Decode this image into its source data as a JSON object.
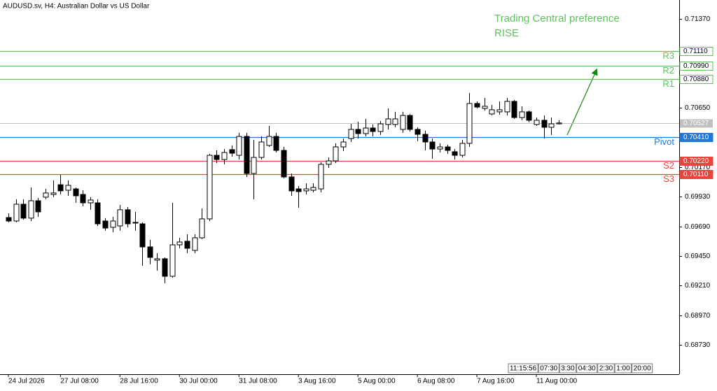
{
  "chart_data": {
    "type": "candlestick",
    "title": "AUDUSD.sv, H4:  Australian Dollar vs US Dollar",
    "annotation": [
      "Trading Central preference",
      "RISE"
    ],
    "categories": [
      "24 Jul 2026",
      null,
      null,
      null,
      null,
      null,
      null,
      "27 Jul 08:00",
      null,
      null,
      null,
      null,
      null,
      null,
      null,
      "28 Jul 16:00",
      null,
      null,
      null,
      null,
      null,
      null,
      null,
      "30 Jul 00:00",
      null,
      null,
      null,
      null,
      null,
      null,
      null,
      "31 Jul 08:00",
      null,
      null,
      null,
      null,
      null,
      null,
      null,
      "3 Aug 16:00",
      null,
      null,
      null,
      null,
      null,
      null,
      null,
      "5 Aug 00:00",
      null,
      null,
      null,
      null,
      null,
      null,
      null,
      "6 Aug 08:00",
      null,
      null,
      null,
      null,
      null,
      null,
      null,
      "7 Aug 16:00",
      null,
      null,
      null,
      null,
      null,
      null,
      null,
      "11 Aug 00:00",
      null,
      null,
      null
    ],
    "open": [
      0.69761,
      0.69733,
      0.69869,
      0.69756,
      0.69897,
      0.69926,
      0.69948,
      0.70027,
      0.69982,
      0.69993,
      0.69948,
      0.6988,
      0.6988,
      0.69733,
      0.69682,
      0.69693,
      0.69824,
      0.69722,
      0.6971,
      0.69523,
      0.69416,
      0.69427,
      0.69285,
      0.6954,
      0.69569,
      0.69495,
      0.69597,
      0.6975,
      0.70265,
      0.70231,
      0.70311,
      0.70265,
      0.70418,
      0.70118,
      0.70248,
      0.70345,
      0.70418,
      0.70305,
      0.7009,
      0.69993,
      0.69977,
      0.69982,
      0.69993,
      0.70192,
      0.7022,
      0.70333,
      0.70401,
      0.70475,
      0.70441,
      0.70486,
      0.70458,
      0.70515,
      0.70515,
      0.70475,
      0.70588,
      0.70475,
      0.70435,
      0.70373,
      0.70316,
      0.70333,
      0.70294,
      0.70265,
      0.70362,
      0.70685,
      0.70645,
      0.706,
      0.70617,
      0.70617,
      0.70702,
      0.70571,
      0.70617,
      0.70515,
      0.70549,
      0.70492,
      0.7052
    ],
    "high": [
      0.69795,
      0.69909,
      0.69909,
      0.70005,
      0.6992,
      0.69993,
      0.70061,
      0.70107,
      0.70061,
      0.70005,
      0.69982,
      0.69926,
      0.69909,
      0.69756,
      0.69767,
      0.69863,
      0.69846,
      0.69807,
      0.69722,
      0.6958,
      0.69472,
      0.69438,
      0.6988,
      0.69597,
      0.69625,
      0.69625,
      0.69835,
      0.70277,
      0.70305,
      0.70316,
      0.70345,
      0.70447,
      0.70447,
      0.7039,
      0.70418,
      0.70503,
      0.70447,
      0.70333,
      0.70118,
      0.70016,
      0.70039,
      0.70039,
      0.70209,
      0.70248,
      0.70362,
      0.70401,
      0.7052,
      0.70537,
      0.7056,
      0.70515,
      0.70543,
      0.70645,
      0.70617,
      0.70617,
      0.706,
      0.70492,
      0.70464,
      0.70401,
      0.70362,
      0.7035,
      0.70316,
      0.7039,
      0.7077,
      0.70702,
      0.7073,
      0.70673,
      0.70702,
      0.7073,
      0.70713,
      0.70662,
      0.70628,
      0.70571,
      0.70588,
      0.70571,
      0.70549
    ],
    "low": [
      0.69722,
      0.69722,
      0.69744,
      0.69733,
      0.69767,
      0.69909,
      0.69926,
      0.69948,
      0.69937,
      0.6988,
      0.69852,
      0.69824,
      0.69693,
      0.69654,
      0.69642,
      0.69654,
      0.69682,
      0.69654,
      0.6937,
      0.69382,
      0.69331,
      0.69229,
      0.69274,
      0.69512,
      0.69472,
      0.69472,
      0.69586,
      0.69733,
      0.70203,
      0.70192,
      0.70254,
      0.70231,
      0.7009,
      0.69909,
      0.70231,
      0.70333,
      0.70288,
      0.70078,
      0.69937,
      0.69841,
      0.69948,
      0.69965,
      0.69965,
      0.70163,
      0.70203,
      0.70299,
      0.70373,
      0.70401,
      0.70418,
      0.70418,
      0.7043,
      0.70475,
      0.70492,
      0.70447,
      0.70458,
      0.70379,
      0.70305,
      0.70237,
      0.70288,
      0.70277,
      0.70231,
      0.70248,
      0.70333,
      0.70645,
      0.70628,
      0.70588,
      0.70594,
      0.70588,
      0.7056,
      0.70549,
      0.70532,
      0.70503,
      0.70401,
      0.7043,
      0.70515
    ],
    "close": [
      0.69733,
      0.69869,
      0.69756,
      0.69897,
      0.69807,
      0.6996,
      0.6996,
      0.69977,
      0.70022,
      0.69937,
      0.6988,
      0.69903,
      0.6971,
      0.69676,
      0.69733,
      0.69824,
      0.6971,
      0.69716,
      0.69523,
      0.69438,
      0.69427,
      0.69285,
      0.6954,
      0.69563,
      0.69512,
      0.69597,
      0.6975,
      0.70265,
      0.70231,
      0.70288,
      0.70282,
      0.70418,
      0.70118,
      0.70248,
      0.70373,
      0.70418,
      0.70305,
      0.7009,
      0.69977,
      0.69971,
      0.69993,
      0.70005,
      0.70192,
      0.7022,
      0.70333,
      0.70373,
      0.70475,
      0.70441,
      0.70486,
      0.70458,
      0.7052,
      0.7056,
      0.7056,
      0.70588,
      0.70475,
      0.70435,
      0.70373,
      0.70316,
      0.70333,
      0.70305,
      0.70265,
      0.70362,
      0.70685,
      0.70656,
      0.70662,
      0.70634,
      0.70634,
      0.70702,
      0.70571,
      0.70617,
      0.70549,
      0.70549,
      0.70492,
      0.7052,
      0.70527
    ],
    "up_color": "#ffffff",
    "down_color": "#000000",
    "ylim": [
      0.68492,
      0.71523
    ],
    "yticks": [
      {
        "value": 0.7137,
        "label": "0.71370"
      },
      {
        "value": 0.7065,
        "label": "0.70650"
      },
      {
        "value": 0.7017,
        "label": "0.70170"
      },
      {
        "value": 0.6993,
        "label": "0.69930"
      },
      {
        "value": 0.6969,
        "label": "0.69690"
      },
      {
        "value": 0.6945,
        "label": "0.69450"
      },
      {
        "value": 0.6921,
        "label": "0.69210"
      },
      {
        "value": 0.6897,
        "label": "0.68970"
      },
      {
        "value": 0.6873,
        "label": "0.68730"
      }
    ],
    "levels": [
      {
        "name": "R3",
        "value": 0.7111,
        "value_label": "0.71110",
        "color": "#5ec35e"
      },
      {
        "name": "R2",
        "value": 0.7099,
        "value_label": "0.70990",
        "color": "#5ec35e"
      },
      {
        "name": "R1",
        "value": 0.7088,
        "value_label": "0.70880",
        "color": "#5ec35e"
      },
      {
        "name": "Pivot",
        "value": 0.7041,
        "value_label": "0.70410",
        "color": "#1e78d7"
      },
      {
        "name": "S2",
        "value": 0.7022,
        "value_label": "0.70220",
        "color": "#e8463c"
      },
      {
        "name": "S3",
        "value": 0.7011,
        "value_label": "0.70110",
        "color": "#e8463c"
      }
    ],
    "last_price": {
      "value": 0.70527,
      "label": "0.70527",
      "color": "#c0c0c0"
    },
    "time_scale_labels": [
      "11:15:56",
      "07:30",
      "3:30",
      "04:30",
      "2:30",
      "1:00",
      "20:00"
    ]
  }
}
